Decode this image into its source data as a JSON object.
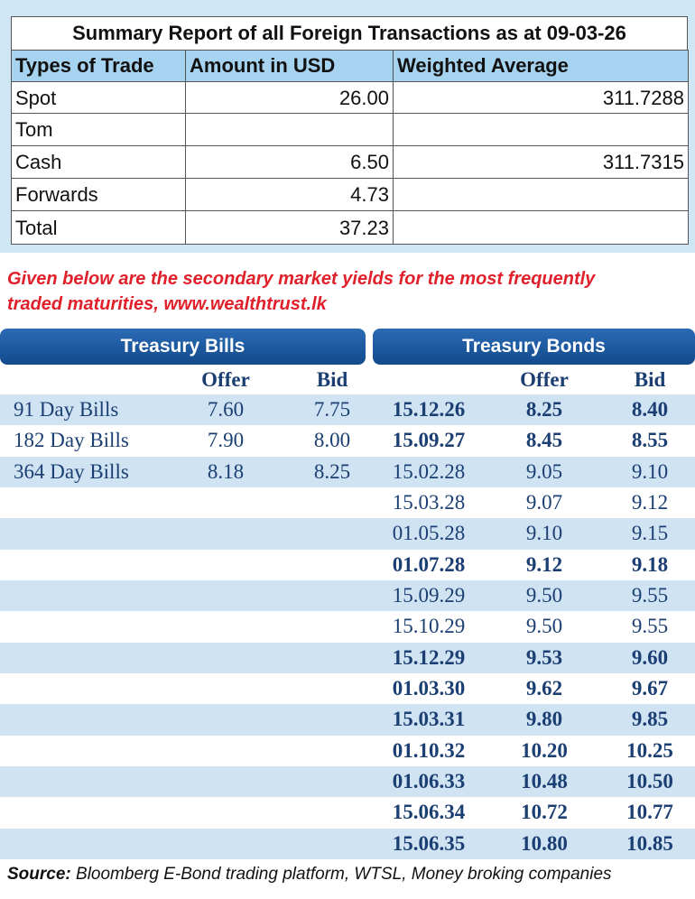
{
  "summary": {
    "title": "Summary Report of all Foreign Transactions as at 09-03-26",
    "headers": [
      "Types of Trade",
      "Amount in USD",
      "Weighted Average"
    ],
    "rows": [
      [
        "Spot",
        "26.00",
        "311.7288"
      ],
      [
        "Tom",
        null,
        null
      ],
      [
        "Cash",
        "6.50",
        "311.7315"
      ],
      [
        "Forwards",
        "4.73",
        null
      ],
      [
        "Total",
        "37.23",
        null
      ]
    ]
  },
  "note": [
    "Given below are the secondary market yields for the most frequently",
    "traded maturities, www.wealthtrust.lk"
  ],
  "bills": {
    "title": "Treasury Bills",
    "headers": [
      "Offer",
      "Bid"
    ],
    "rows": [
      [
        "91 Day Bills",
        "7.60",
        "7.75"
      ],
      [
        "182 Day Bills",
        "7.90",
        "8.00"
      ],
      [
        "364 Day Bills",
        "8.18",
        "8.25"
      ]
    ]
  },
  "bonds": {
    "title": "Treasury Bonds",
    "headers": [
      "Offer",
      "Bid"
    ],
    "rows": [
      {
        "cells": [
          "15.12.26",
          "8.25",
          "8.40"
        ],
        "bold": true
      },
      {
        "cells": [
          "15.09.27",
          "8.45",
          "8.55"
        ],
        "bold": true
      },
      {
        "cells": [
          "15.02.28",
          "9.05",
          "9.10"
        ],
        "bold": false
      },
      {
        "cells": [
          "15.03.28",
          "9.07",
          "9.12"
        ],
        "bold": false
      },
      {
        "cells": [
          "01.05.28",
          "9.10",
          "9.15"
        ],
        "bold": false
      },
      {
        "cells": [
          "01.07.28",
          "9.12",
          "9.18"
        ],
        "bold": true
      },
      {
        "cells": [
          "15.09.29",
          "9.50",
          "9.55"
        ],
        "bold": false
      },
      {
        "cells": [
          "15.10.29",
          "9.50",
          "9.55"
        ],
        "bold": false
      },
      {
        "cells": [
          "15.12.29",
          "9.53",
          "9.60"
        ],
        "bold": true
      },
      {
        "cells": [
          "01.03.30",
          "9.62",
          "9.67"
        ],
        "bold": true
      },
      {
        "cells": [
          "15.03.31",
          "9.80",
          "9.85"
        ],
        "bold": true
      },
      {
        "cells": [
          "01.10.32",
          "10.20",
          "10.25"
        ],
        "bold": true
      },
      {
        "cells": [
          "01.06.33",
          "10.48",
          "10.50"
        ],
        "bold": true
      },
      {
        "cells": [
          "15.06.34",
          "10.72",
          "10.77"
        ],
        "bold": true
      },
      {
        "cells": [
          "15.06.35",
          "10.80",
          "10.85"
        ],
        "bold": true
      }
    ]
  },
  "source": {
    "label": "Source:",
    "text": "Bloomberg E-Bond trading platform, WTSL, Money broking companies"
  }
}
